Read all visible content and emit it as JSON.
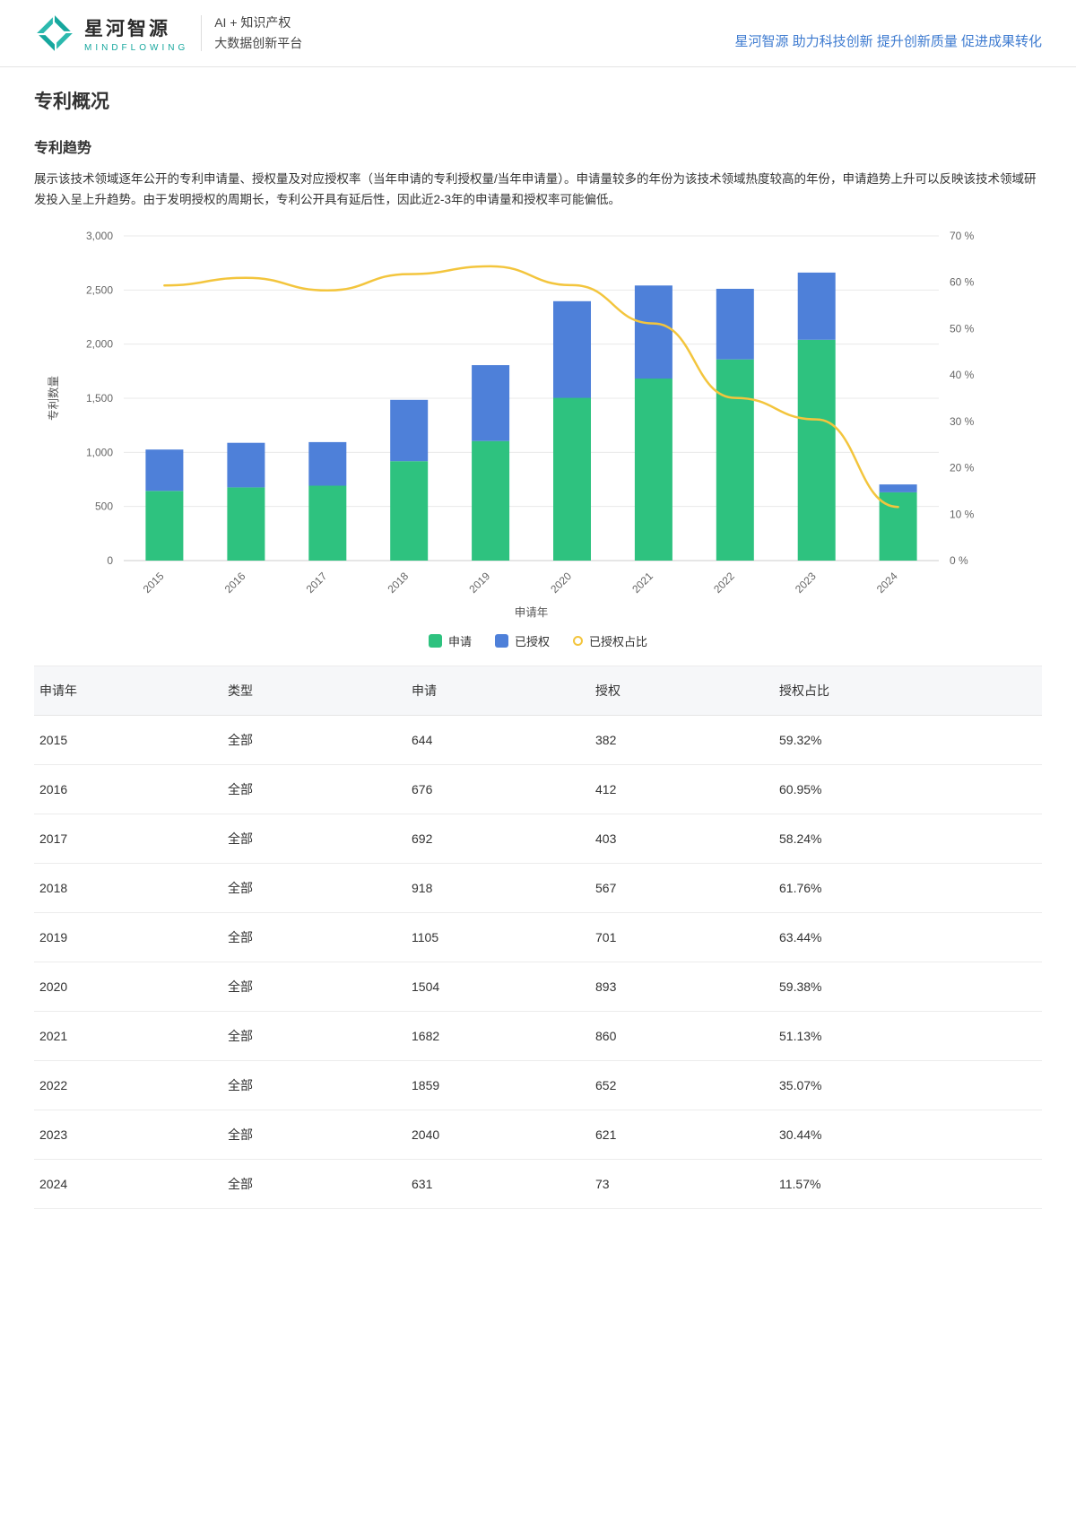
{
  "header": {
    "logo_title": "星河智源",
    "logo_subtitle": "MINDFLOWING",
    "logo_tag_line1": "AI + 知识产权",
    "logo_tag_line2": "大数据创新平台",
    "slogan": "星河智源 助力科技创新 提升创新质量 促进成果转化"
  },
  "page": {
    "title": "专利概况",
    "section_title": "专利趋势",
    "description": "展示该技术领域逐年公开的专利申请量、授权量及对应授权率（当年申请的专利授权量/当年申请量）。申请量较多的年份为该技术领域热度较高的年份，申请趋势上升可以反映该技术领域研发投入呈上升趋势。由于发明授权的周期长，专利公开具有延后性，因此近2-3年的申请量和授权率可能偏低。"
  },
  "colors": {
    "apply_green": "#2EC27F",
    "grant_blue": "#4E80D9",
    "ratio_yellow": "#F3C53D",
    "slogan_blue": "#3E7BD0",
    "logo_teal": "#17A79E"
  },
  "chart_data": {
    "type": "bar",
    "stacked": true,
    "categories": [
      "2015",
      "2016",
      "2017",
      "2018",
      "2019",
      "2020",
      "2021",
      "2022",
      "2023",
      "2024"
    ],
    "series": [
      {
        "name": "申请",
        "type": "bar",
        "color": "#2EC27F",
        "values": [
          644,
          676,
          692,
          918,
          1105,
          1504,
          1682,
          1859,
          2040,
          631
        ]
      },
      {
        "name": "已授权",
        "type": "bar",
        "color": "#4E80D9",
        "values": [
          382,
          412,
          403,
          567,
          701,
          893,
          860,
          652,
          621,
          73
        ]
      },
      {
        "name": "已授权占比",
        "type": "line",
        "color": "#F3C53D",
        "values": [
          59.32,
          60.95,
          58.24,
          61.76,
          63.44,
          59.38,
          51.13,
          35.07,
          30.44,
          11.57
        ]
      }
    ],
    "xlabel": "申请年",
    "ylabel": "专利数量",
    "ylim": [
      0,
      3000
    ],
    "y2lim": [
      0,
      70
    ],
    "y_ticks": [
      "0",
      "500",
      "1,000",
      "1,500",
      "2,000",
      "2,500",
      "3,000"
    ],
    "y2_ticks": [
      "0 %",
      "10 %",
      "20 %",
      "30 %",
      "40 %",
      "50 %",
      "60 %",
      "70 %"
    ],
    "grid": true,
    "legend_position": "bottom"
  },
  "table": {
    "columns": [
      "申请年",
      "类型",
      "申请",
      "授权",
      "授权占比"
    ],
    "rows": [
      [
        "2015",
        "全部",
        "644",
        "382",
        "59.32%"
      ],
      [
        "2016",
        "全部",
        "676",
        "412",
        "60.95%"
      ],
      [
        "2017",
        "全部",
        "692",
        "403",
        "58.24%"
      ],
      [
        "2018",
        "全部",
        "918",
        "567",
        "61.76%"
      ],
      [
        "2019",
        "全部",
        "1105",
        "701",
        "63.44%"
      ],
      [
        "2020",
        "全部",
        "1504",
        "893",
        "59.38%"
      ],
      [
        "2021",
        "全部",
        "1682",
        "860",
        "51.13%"
      ],
      [
        "2022",
        "全部",
        "1859",
        "652",
        "35.07%"
      ],
      [
        "2023",
        "全部",
        "2040",
        "621",
        "30.44%"
      ],
      [
        "2024",
        "全部",
        "631",
        "73",
        "11.57%"
      ]
    ]
  }
}
